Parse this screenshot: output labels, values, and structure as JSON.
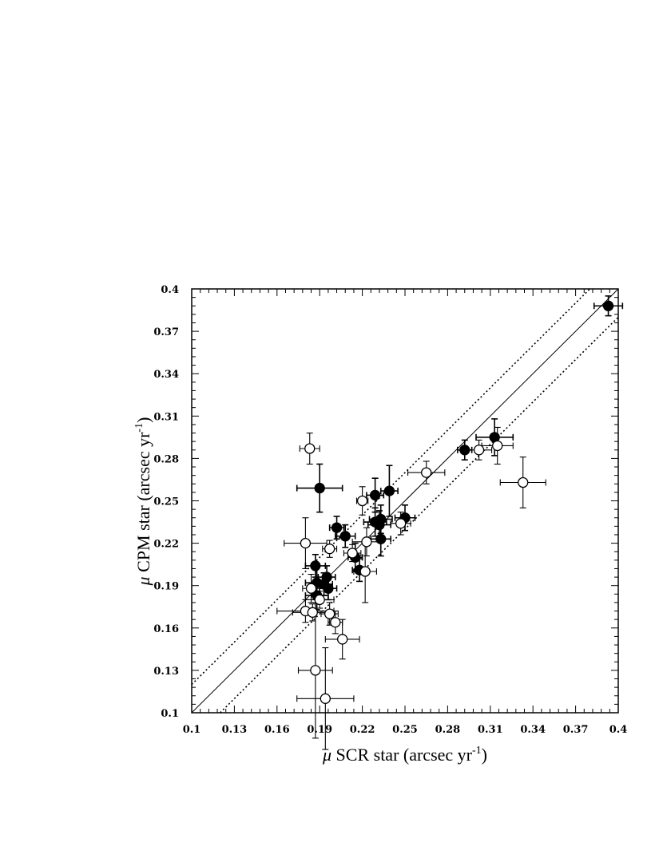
{
  "chart_data": {
    "type": "scatter",
    "xlabel": {
      "prefix": "μ",
      "text": " SCR star (arcsec yr",
      "sup": "-1",
      "suffix": ")"
    },
    "ylabel": {
      "prefix": "μ",
      "text": " CPM star (arcsec yr",
      "sup": "-1",
      "suffix": ")"
    },
    "xlim": [
      0.1,
      0.4
    ],
    "ylim": [
      0.1,
      0.4
    ],
    "xticks": [
      "0.1",
      "0.13",
      "0.16",
      "0.19",
      "0.22",
      "0.25",
      "0.28",
      "0.31",
      "0.34",
      "0.37",
      "0.4"
    ],
    "yticks": [
      "0.1",
      "0.13",
      "0.16",
      "0.19",
      "0.22",
      "0.25",
      "0.28",
      "0.31",
      "0.34",
      "0.37",
      "0.4"
    ],
    "reference_lines": [
      {
        "style": "solid",
        "offset": 0.0
      },
      {
        "style": "dotted",
        "offset": 0.02
      },
      {
        "style": "dotted",
        "offset": -0.02
      }
    ],
    "series": [
      {
        "marker": "filled-circle",
        "points": [
          {
            "x": 0.393,
            "y": 0.388,
            "xerr": 0.01,
            "yerr": 0.007
          },
          {
            "x": 0.313,
            "y": 0.295,
            "xerr": 0.013,
            "yerr": 0.013
          },
          {
            "x": 0.292,
            "y": 0.286,
            "xerr": 0.005,
            "yerr": 0.007
          },
          {
            "x": 0.25,
            "y": 0.238,
            "xerr": 0.007,
            "yerr": 0.009
          },
          {
            "x": 0.239,
            "y": 0.257,
            "xerr": 0.006,
            "yerr": 0.018
          },
          {
            "x": 0.229,
            "y": 0.254,
            "xerr": 0.006,
            "yerr": 0.012
          },
          {
            "x": 0.229,
            "y": 0.235,
            "xerr": 0.008,
            "yerr": 0.01
          },
          {
            "x": 0.233,
            "y": 0.237,
            "xerr": 0.008,
            "yerr": 0.01
          },
          {
            "x": 0.232,
            "y": 0.233,
            "xerr": 0.008,
            "yerr": 0.01
          },
          {
            "x": 0.233,
            "y": 0.223,
            "xerr": 0.007,
            "yerr": 0.012
          },
          {
            "x": 0.208,
            "y": 0.225,
            "xerr": 0.007,
            "yerr": 0.008
          },
          {
            "x": 0.202,
            "y": 0.231,
            "xerr": 0.005,
            "yerr": 0.008
          },
          {
            "x": 0.215,
            "y": 0.21,
            "xerr": 0.005,
            "yerr": 0.01
          },
          {
            "x": 0.218,
            "y": 0.201,
            "xerr": 0.005,
            "yerr": 0.008
          },
          {
            "x": 0.19,
            "y": 0.259,
            "xerr": 0.016,
            "yerr": 0.017
          },
          {
            "x": 0.187,
            "y": 0.204,
            "xerr": 0.007,
            "yerr": 0.008
          },
          {
            "x": 0.188,
            "y": 0.192,
            "xerr": 0.008,
            "yerr": 0.012
          },
          {
            "x": 0.188,
            "y": 0.183,
            "xerr": 0.008,
            "yerr": 0.01
          },
          {
            "x": 0.193,
            "y": 0.191,
            "xerr": 0.006,
            "yerr": 0.008
          },
          {
            "x": 0.195,
            "y": 0.196,
            "xerr": 0.006,
            "yerr": 0.008
          },
          {
            "x": 0.196,
            "y": 0.188,
            "xerr": 0.006,
            "yerr": 0.008
          }
        ]
      },
      {
        "marker": "open-circle",
        "points": [
          {
            "x": 0.315,
            "y": 0.289,
            "xerr": 0.011,
            "yerr": 0.013
          },
          {
            "x": 0.302,
            "y": 0.286,
            "xerr": 0.009,
            "yerr": 0.007
          },
          {
            "x": 0.333,
            "y": 0.263,
            "xerr": 0.016,
            "yerr": 0.018
          },
          {
            "x": 0.265,
            "y": 0.27,
            "xerr": 0.013,
            "yerr": 0.008
          },
          {
            "x": 0.247,
            "y": 0.234,
            "xerr": 0.007,
            "yerr": 0.008
          },
          {
            "x": 0.22,
            "y": 0.25,
            "xerr": 0.004,
            "yerr": 0.01
          },
          {
            "x": 0.223,
            "y": 0.221,
            "xerr": 0.01,
            "yerr": 0.01
          },
          {
            "x": 0.213,
            "y": 0.213,
            "xerr": 0.006,
            "yerr": 0.006
          },
          {
            "x": 0.222,
            "y": 0.2,
            "xerr": 0.008,
            "yerr": 0.022
          },
          {
            "x": 0.183,
            "y": 0.287,
            "xerr": 0.007,
            "yerr": 0.011
          },
          {
            "x": 0.18,
            "y": 0.22,
            "xerr": 0.015,
            "yerr": 0.018
          },
          {
            "x": 0.197,
            "y": 0.216,
            "xerr": 0.005,
            "yerr": 0.006
          },
          {
            "x": 0.184,
            "y": 0.188,
            "xerr": 0.006,
            "yerr": 0.01
          },
          {
            "x": 0.18,
            "y": 0.172,
            "xerr": 0.02,
            "yerr": 0.008
          },
          {
            "x": 0.185,
            "y": 0.171,
            "xerr": 0.014,
            "yerr": 0.006
          },
          {
            "x": 0.19,
            "y": 0.18,
            "xerr": 0.01,
            "yerr": 0.006
          },
          {
            "x": 0.197,
            "y": 0.17,
            "xerr": 0.006,
            "yerr": 0.008
          },
          {
            "x": 0.201,
            "y": 0.164,
            "xerr": 0.005,
            "yerr": 0.008
          },
          {
            "x": 0.206,
            "y": 0.152,
            "xerr": 0.012,
            "yerr": 0.014
          },
          {
            "x": 0.187,
            "y": 0.13,
            "xerr": 0.012,
            "yerr": 0.048
          },
          {
            "x": 0.194,
            "y": 0.11,
            "xerr": 0.02,
            "yerr": 0.036
          }
        ]
      }
    ]
  }
}
